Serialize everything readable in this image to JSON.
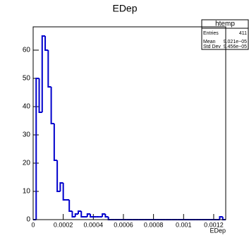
{
  "chart_data": {
    "type": "histogram",
    "title": "EDep",
    "x_label": "EDep",
    "bins": [
      0,
      2e-05,
      4e-05,
      6e-05,
      8e-05,
      0.0001,
      0.00012,
      0.00014,
      0.00016,
      0.00018,
      0.0002,
      0.00022,
      0.00024,
      0.00026,
      0.00028,
      0.0003,
      0.00032,
      0.00034,
      0.00036,
      0.00038,
      0.0004,
      0.00042,
      0.00044,
      0.00046,
      0.00048,
      0.0005,
      0.00052,
      0.00054,
      0.00056,
      0.00058,
      0.0006,
      0.00062,
      0.00064,
      0.00066,
      0.00068,
      0.0007,
      0.00072,
      0.00074,
      0.00076,
      0.00078,
      0.0008,
      0.00082,
      0.00084,
      0.00086,
      0.00088,
      0.0009,
      0.00092,
      0.00094,
      0.00096,
      0.00098,
      0.001,
      0.00102,
      0.00104,
      0.00106,
      0.00108,
      0.0011,
      0.00112,
      0.00114,
      0.00116,
      0.00118,
      0.0012,
      0.00122,
      0.00124,
      0.00126,
      0.00128
    ],
    "counts": [
      0,
      50,
      38,
      65,
      60,
      47,
      34,
      21,
      10,
      13,
      7,
      7,
      3,
      1,
      2,
      3,
      1,
      1,
      2,
      1,
      1,
      1,
      1,
      2,
      1,
      0,
      0,
      0,
      0,
      0,
      0,
      0,
      0,
      0,
      0,
      0,
      0,
      0,
      0,
      0,
      0,
      0,
      0,
      0,
      0,
      0,
      0,
      0,
      0,
      0,
      0,
      0,
      0,
      0,
      0,
      0,
      0,
      0,
      0,
      0,
      0,
      0,
      1,
      0
    ],
    "color": "#0000cc",
    "xlim": [
      0,
      0.00128
    ],
    "xticks": [
      0,
      0.0002,
      0.0004,
      0.0006,
      0.0008,
      0.001,
      0.0012
    ],
    "ylim": [
      0,
      68.25
    ],
    "yticks": [
      0,
      10,
      20,
      30,
      40,
      50,
      60
    ],
    "stats": {
      "title": "htemp",
      "rows": [
        [
          "Entries",
          "411"
        ],
        [
          "Mean",
          "9.021e−05"
        ],
        [
          "Std Dev",
          "9.456e−05"
        ]
      ]
    }
  }
}
